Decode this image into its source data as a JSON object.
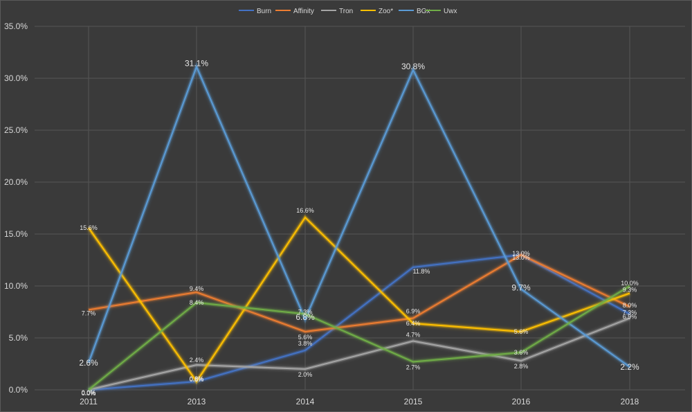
{
  "chart_data": {
    "type": "line",
    "title": "",
    "xlabel": "",
    "ylabel": "",
    "legend_position": "top-center",
    "grid": true,
    "ylim": [
      0,
      35
    ],
    "y_ticks": [
      "0.0%",
      "5.0%",
      "10.0%",
      "15.0%",
      "20.0%",
      "25.0%",
      "30.0%",
      "35.0%"
    ],
    "categories": [
      "2011",
      "2013",
      "2014",
      "2015",
      "2016",
      "2018"
    ],
    "series": [
      {
        "name": "Burn",
        "color": "#4472c4",
        "values": [
          0.0,
          0.8,
          3.8,
          11.8,
          13.0,
          7.3
        ],
        "labels": [
          "0.0%",
          "0.8%",
          "3.8%",
          "11.8%",
          "13.0%",
          "7.3%"
        ]
      },
      {
        "name": "Affinity",
        "color": "#ed7d31",
        "values": [
          7.7,
          9.4,
          5.6,
          6.9,
          13.0,
          8.0
        ],
        "labels": [
          "7.7%",
          "9.4%",
          "5.6%",
          "6.9%",
          "13.0%",
          "8.0%"
        ]
      },
      {
        "name": "Tron",
        "color": "#a5a5a5",
        "values": [
          0.0,
          2.4,
          2.0,
          4.7,
          2.8,
          6.9
        ],
        "labels": [
          "0.0%",
          "2.4%",
          "2.0%",
          "4.7%",
          "2.8%",
          "6.9%"
        ]
      },
      {
        "name": "Zoo*",
        "color": "#ffc000",
        "values": [
          15.6,
          0.8,
          16.6,
          6.4,
          5.6,
          9.3
        ],
        "labels": [
          "15.6%",
          "0.8%",
          "16.6%",
          "6.4%",
          "5.6%",
          "9.3%"
        ]
      },
      {
        "name": "BGx",
        "color": "#5b9bd5",
        "values": [
          2.6,
          31.1,
          6.8,
          30.8,
          9.7,
          2.2
        ],
        "labels": [
          "2.6%",
          "31.1%",
          "6.8%",
          "30.8%",
          "9.7%",
          "2.2%"
        ]
      },
      {
        "name": "Uwx",
        "color": "#70ad47",
        "values": [
          0.0,
          8.4,
          7.3,
          2.7,
          3.6,
          10.0
        ],
        "labels": [
          "0.0%",
          "8.4%",
          "7.3%",
          "2.7%",
          "3.6%",
          "10.0%"
        ]
      }
    ]
  }
}
